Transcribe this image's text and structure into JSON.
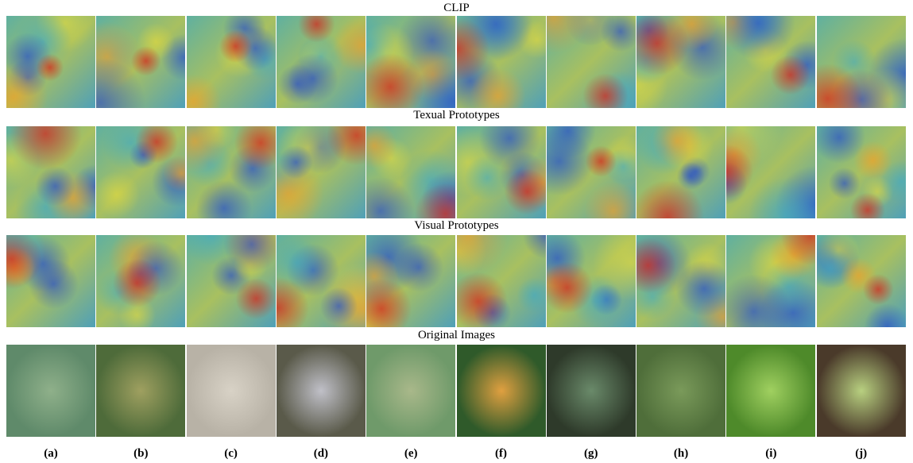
{
  "rows": [
    {
      "title": "CLIP"
    },
    {
      "title": "Texual Prototypes"
    },
    {
      "title": "Visual Prototypes"
    },
    {
      "title": "Original Images"
    }
  ],
  "columns": [
    {
      "label": "(a)"
    },
    {
      "label": "(b)"
    },
    {
      "label": "(c)"
    },
    {
      "label": "(d)"
    },
    {
      "label": "(e)"
    },
    {
      "label": "(f)"
    },
    {
      "label": "(g)"
    },
    {
      "label": "(h)"
    },
    {
      "label": "(i)"
    },
    {
      "label": "(j)"
    }
  ]
}
